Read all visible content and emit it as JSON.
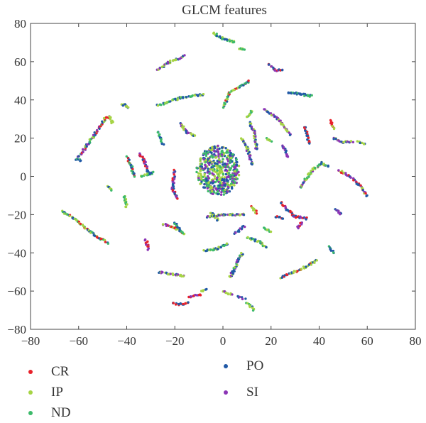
{
  "colors": {
    "CR": "#e8212a",
    "IP": "#a6d445",
    "ND": "#3cba6a",
    "PO": "#2159a6",
    "SI": "#8b35b5"
  },
  "chart_data": {
    "type": "scatter",
    "title": "GLCM features",
    "xlabel": "",
    "ylabel": "",
    "xlim": [
      -80,
      80
    ],
    "ylim": [
      -80,
      80
    ],
    "xticks": [
      "-80",
      "-60",
      "-40",
      "-20",
      "0",
      "20",
      "40",
      "60",
      "80"
    ],
    "yticks": [
      "-80",
      "-60",
      "-40",
      "-20",
      "0",
      "20",
      "40",
      "60",
      "80"
    ],
    "grid": false,
    "legend_position": "bottom",
    "legend": [
      "CR",
      "IP",
      "ND",
      "PO",
      "SI"
    ],
    "center_cluster": {
      "cx": -2,
      "cy": 3,
      "rx": 9,
      "ry": 13,
      "classes": [
        "PO",
        "ND",
        "IP",
        "SI"
      ]
    },
    "arcs": [
      {
        "pts": [
          [
            -4,
            75
          ],
          [
            0,
            72
          ],
          [
            5,
            70
          ]
        ],
        "classes": [
          "ND",
          "IP",
          "PO"
        ]
      },
      {
        "pts": [
          [
            7,
            67
          ],
          [
            9,
            66
          ]
        ],
        "classes": [
          "ND",
          "IP"
        ]
      },
      {
        "pts": [
          [
            -27,
            56
          ],
          [
            -22,
            60
          ],
          [
            -16,
            63
          ]
        ],
        "classes": [
          "IP",
          "PO",
          "SI"
        ]
      },
      {
        "pts": [
          [
            -27,
            37
          ],
          [
            -18,
            41
          ],
          [
            -8,
            43
          ]
        ],
        "classes": [
          "IP",
          "ND",
          "PO"
        ]
      },
      {
        "pts": [
          [
            0,
            36
          ],
          [
            3,
            44
          ],
          [
            11,
            50
          ]
        ],
        "classes": [
          "ND",
          "IP",
          "PO",
          "CR"
        ]
      },
      {
        "pts": [
          [
            19,
            59
          ],
          [
            22,
            55
          ],
          [
            25,
            56
          ]
        ],
        "classes": [
          "CR",
          "PO",
          "SI"
        ]
      },
      {
        "pts": [
          [
            27,
            44
          ],
          [
            32,
            43
          ],
          [
            37,
            42
          ]
        ],
        "classes": [
          "ND",
          "PO"
        ]
      },
      {
        "pts": [
          [
            -42,
            38
          ],
          [
            -39,
            36
          ]
        ],
        "classes": [
          "PO",
          "IP"
        ]
      },
      {
        "pts": [
          [
            -60,
            10
          ],
          [
            -55,
            19
          ],
          [
            -49,
            30
          ],
          [
            -47,
            31
          ]
        ],
        "classes": [
          "IP",
          "ND",
          "PO",
          "SI",
          "CR"
        ]
      },
      {
        "pts": [
          [
            -61,
            9
          ],
          [
            -59,
            8
          ]
        ],
        "classes": [
          "PO",
          "ND"
        ]
      },
      {
        "pts": [
          [
            -47,
            31
          ],
          [
            -46,
            28
          ]
        ],
        "classes": [
          "IP"
        ]
      },
      {
        "pts": [
          [
            -18,
            28
          ],
          [
            -15,
            23
          ],
          [
            -12,
            21
          ]
        ],
        "classes": [
          "PO",
          "IP",
          "SI"
        ]
      },
      {
        "pts": [
          [
            -27,
            23
          ],
          [
            -25,
            17
          ]
        ],
        "classes": [
          "ND",
          "PO"
        ]
      },
      {
        "pts": [
          [
            12,
            34
          ],
          [
            10,
            31
          ]
        ],
        "classes": [
          "IP",
          "ND"
        ]
      },
      {
        "pts": [
          [
            11,
            28
          ],
          [
            13,
            23
          ],
          [
            14,
            14
          ]
        ],
        "classes": [
          "IP",
          "PO",
          "SI"
        ]
      },
      {
        "pts": [
          [
            18,
            20
          ],
          [
            20,
            18
          ]
        ],
        "classes": [
          "IP",
          "ND"
        ]
      },
      {
        "pts": [
          [
            8,
            20
          ],
          [
            10,
            15
          ],
          [
            12,
            6
          ]
        ],
        "classes": [
          "PO",
          "SI",
          "IP"
        ]
      },
      {
        "pts": [
          [
            17,
            35
          ],
          [
            23,
            30
          ],
          [
            28,
            22
          ]
        ],
        "classes": [
          "IP",
          "SI",
          "PO"
        ]
      },
      {
        "pts": [
          [
            25,
            16
          ],
          [
            27,
            10
          ]
        ],
        "classes": [
          "PO",
          "SI"
        ]
      },
      {
        "pts": [
          [
            34,
            26
          ],
          [
            36,
            17
          ]
        ],
        "classes": [
          "PO",
          "CR"
        ]
      },
      {
        "pts": [
          [
            32,
            -6
          ],
          [
            37,
            3
          ],
          [
            41,
            7
          ],
          [
            44,
            5
          ]
        ],
        "classes": [
          "IP",
          "SI",
          "PO",
          "ND"
        ]
      },
      {
        "pts": [
          [
            45,
            29
          ],
          [
            46,
            25
          ]
        ],
        "classes": [
          "IP",
          "CR"
        ]
      },
      {
        "pts": [
          [
            46,
            20
          ],
          [
            50,
            18
          ],
          [
            54,
            18
          ]
        ],
        "classes": [
          "PO",
          "IP",
          "SI"
        ]
      },
      {
        "pts": [
          [
            56,
            18
          ],
          [
            59,
            17
          ]
        ],
        "classes": [
          "PO",
          "IP"
        ]
      },
      {
        "pts": [
          [
            48,
            3
          ],
          [
            53,
            0
          ],
          [
            57,
            -5
          ],
          [
            60,
            -10
          ]
        ],
        "classes": [
          "IP",
          "PO",
          "CR",
          "SI"
        ]
      },
      {
        "pts": [
          [
            -35,
            12
          ],
          [
            -33,
            9
          ],
          [
            -31,
            2
          ]
        ],
        "classes": [
          "PO",
          "SI",
          "CR"
        ]
      },
      {
        "pts": [
          [
            -40,
            10
          ],
          [
            -38,
            5
          ],
          [
            -37,
            0
          ]
        ],
        "classes": [
          "ND",
          "CR",
          "PO"
        ]
      },
      {
        "pts": [
          [
            -20,
            3
          ],
          [
            -21,
            -6
          ],
          [
            -19,
            -12
          ]
        ],
        "classes": [
          "PO",
          "CR",
          "SI"
        ]
      },
      {
        "pts": [
          [
            -34,
            0
          ],
          [
            -31,
            1
          ],
          [
            -29,
            2
          ]
        ],
        "classes": [
          "IP",
          "ND",
          "PO"
        ]
      },
      {
        "pts": [
          [
            -48,
            -5
          ],
          [
            -46,
            -7
          ]
        ],
        "classes": [
          "ND",
          "PO",
          "IP"
        ]
      },
      {
        "pts": [
          [
            -41,
            -10
          ],
          [
            -40,
            -16
          ]
        ],
        "classes": [
          "ND",
          "IP"
        ]
      },
      {
        "pts": [
          [
            -67,
            -18
          ],
          [
            -62,
            -22
          ],
          [
            -55,
            -29
          ],
          [
            -48,
            -35
          ]
        ],
        "classes": [
          "IP",
          "CR",
          "PO",
          "ND"
        ]
      },
      {
        "pts": [
          [
            -32,
            -33
          ],
          [
            -31,
            -38
          ]
        ],
        "classes": [
          "SI",
          "CR"
        ]
      },
      {
        "pts": [
          [
            -25,
            -25
          ],
          [
            -20,
            -27
          ],
          [
            -16,
            -30
          ]
        ],
        "classes": [
          "CR",
          "SI",
          "IP"
        ]
      },
      {
        "pts": [
          [
            -20,
            -24
          ],
          [
            -17,
            -30
          ]
        ],
        "classes": [
          "ND",
          "PO"
        ]
      },
      {
        "pts": [
          [
            -7,
            -21
          ],
          [
            0,
            -20
          ],
          [
            9,
            -20
          ]
        ],
        "classes": [
          "PO",
          "SI",
          "IP"
        ]
      },
      {
        "pts": [
          [
            -5,
            -19
          ],
          [
            -2,
            -23
          ]
        ],
        "classes": [
          "IP",
          "PO"
        ]
      },
      {
        "pts": [
          [
            12,
            -16
          ],
          [
            14,
            -19
          ]
        ],
        "classes": [
          "IP",
          "CR"
        ]
      },
      {
        "pts": [
          [
            24,
            -14
          ],
          [
            30,
            -21
          ],
          [
            35,
            -22
          ]
        ],
        "classes": [
          "CR",
          "PO",
          "SI"
        ]
      },
      {
        "pts": [
          [
            22,
            -21
          ],
          [
            25,
            -22
          ]
        ],
        "classes": [
          "CR",
          "PO"
        ]
      },
      {
        "pts": [
          [
            33,
            -24
          ],
          [
            31,
            -27
          ]
        ],
        "classes": [
          "SI",
          "CR"
        ]
      },
      {
        "pts": [
          [
            47,
            -17
          ],
          [
            49,
            -20
          ]
        ],
        "classes": [
          "SI",
          "PO"
        ]
      },
      {
        "pts": [
          [
            5,
            -30
          ],
          [
            9,
            -26
          ]
        ],
        "classes": [
          "SI",
          "PO"
        ]
      },
      {
        "pts": [
          [
            17,
            -27
          ],
          [
            20,
            -29
          ]
        ],
        "classes": [
          "ND",
          "IP"
        ]
      },
      {
        "pts": [
          [
            10,
            -32
          ],
          [
            15,
            -34
          ],
          [
            18,
            -37
          ]
        ],
        "classes": [
          "PO",
          "IP",
          "ND"
        ]
      },
      {
        "pts": [
          [
            -8,
            -39
          ],
          [
            -3,
            -38
          ],
          [
            2,
            -35
          ]
        ],
        "classes": [
          "ND",
          "IP",
          "PO"
        ]
      },
      {
        "pts": [
          [
            3,
            -53
          ],
          [
            6,
            -45
          ],
          [
            8,
            -40
          ]
        ],
        "classes": [
          "IP",
          "ND",
          "SI",
          "PO"
        ]
      },
      {
        "pts": [
          [
            24,
            -53
          ],
          [
            32,
            -49
          ],
          [
            39,
            -44
          ]
        ],
        "classes": [
          "CR",
          "IP",
          "PO"
        ]
      },
      {
        "pts": [
          [
            44,
            -37
          ],
          [
            46,
            -40
          ]
        ],
        "classes": [
          "ND",
          "PO"
        ]
      },
      {
        "pts": [
          [
            -27,
            -50
          ],
          [
            -22,
            -51
          ],
          [
            -16,
            -52
          ]
        ],
        "classes": [
          "PO",
          "IP",
          "SI"
        ]
      },
      {
        "pts": [
          [
            -9,
            -60
          ],
          [
            -7,
            -59
          ]
        ],
        "classes": [
          "PO",
          "IP"
        ]
      },
      {
        "pts": [
          [
            -14,
            -63
          ],
          [
            -9,
            -62
          ]
        ],
        "classes": [
          "SI",
          "CR"
        ]
      },
      {
        "pts": [
          [
            -21,
            -66
          ],
          [
            -18,
            -67
          ],
          [
            -14,
            -66
          ]
        ],
        "classes": [
          "PO",
          "IP",
          "CR"
        ]
      },
      {
        "pts": [
          [
            0,
            -60
          ],
          [
            4,
            -62
          ]
        ],
        "classes": [
          "IP",
          "SI"
        ]
      },
      {
        "pts": [
          [
            6,
            -63
          ],
          [
            9,
            -64
          ]
        ],
        "classes": [
          "SI",
          "PO"
        ]
      },
      {
        "pts": [
          [
            10,
            -66
          ],
          [
            13,
            -70
          ]
        ],
        "classes": [
          "ND",
          "PO",
          "IP"
        ]
      }
    ]
  }
}
